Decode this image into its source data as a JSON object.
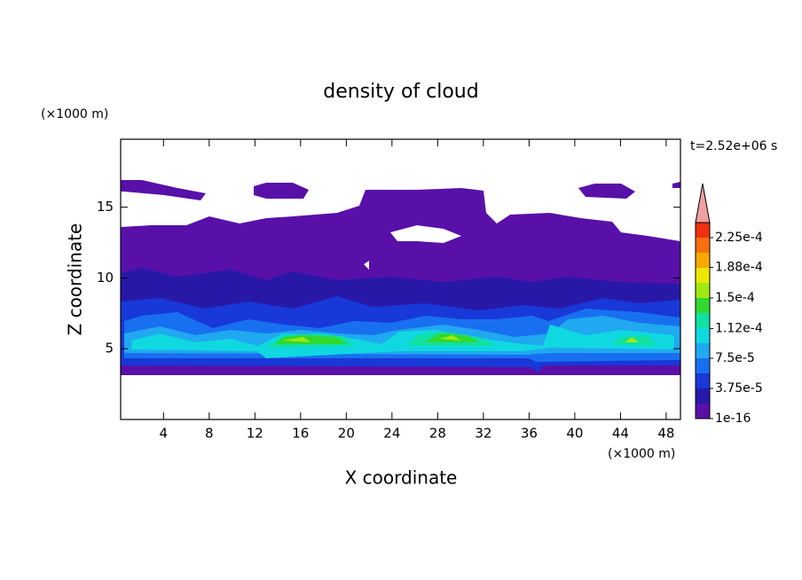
{
  "chart_data": {
    "type": "contour",
    "title": "density of cloud",
    "x_label": "X coordinate",
    "y_label": "Z coordinate",
    "x_unit": "(×1000 m)",
    "y_unit": "(×1000 m)",
    "time_label": "t=2.52e+06 s",
    "xlim": [
      0.25,
      49.25
    ],
    "ylim": [
      0,
      19.8
    ],
    "xticks": [
      4,
      8,
      12,
      16,
      20,
      24,
      28,
      32,
      36,
      40,
      44,
      48
    ],
    "yticks": [
      5,
      10,
      15
    ],
    "colorbar": {
      "lim": [
        1e-16,
        0.00024375
      ],
      "ticks": [
        {
          "value": 1e-16,
          "label": "1e-16"
        },
        {
          "value": 3.75e-05,
          "label": "3.75e-5"
        },
        {
          "value": 7.5e-05,
          "label": "7.5e-5"
        },
        {
          "value": 0.000112,
          "label": "1.12e-4"
        },
        {
          "value": 0.00015,
          "label": "1.5e-4"
        },
        {
          "value": 0.000188,
          "label": "1.88e-4"
        },
        {
          "value": 0.000225,
          "label": "2.25e-4"
        }
      ],
      "colors": [
        "#5810a8",
        "#2818a8",
        "#1838d8",
        "#1870f0",
        "#20a8f0",
        "#10d8e0",
        "#10e0a0",
        "#30d830",
        "#a0e810",
        "#e8e800",
        "#f8a800",
        "#f87010",
        "#f03010"
      ],
      "extend_color": "#f0a0a0"
    }
  }
}
